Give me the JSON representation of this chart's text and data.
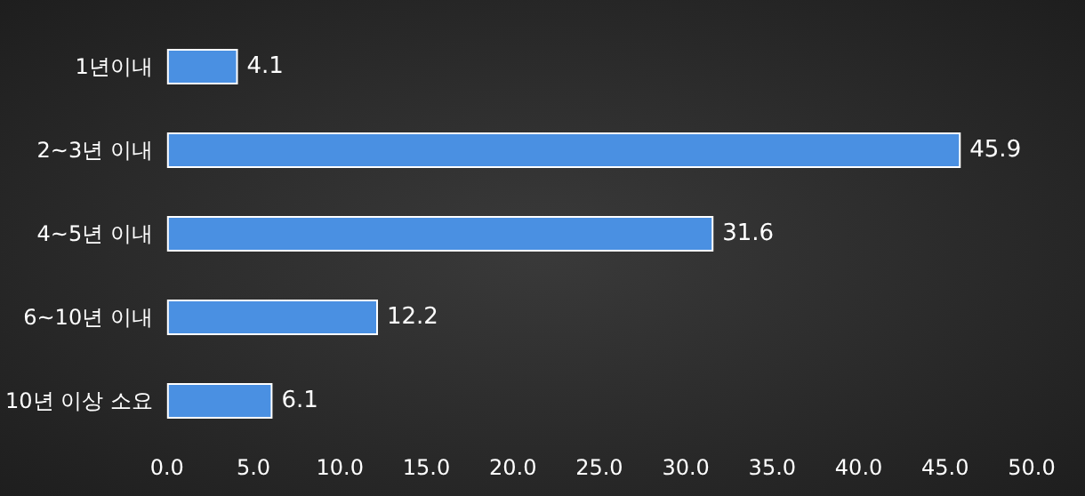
{
  "chart_data": {
    "type": "bar",
    "orientation": "horizontal",
    "categories": [
      "1년이내",
      "2~3년 이내",
      "4~5년 이내",
      "6~10년 이내",
      "10년 이상 소요"
    ],
    "values": [
      4.1,
      45.9,
      31.6,
      12.2,
      6.1
    ],
    "color": "#4a90e2",
    "xlim": [
      0,
      50
    ],
    "xticks": [
      {
        "value": 0,
        "label": "0.0"
      },
      {
        "value": 5,
        "label": "5.0"
      },
      {
        "value": 10,
        "label": "10.0"
      },
      {
        "value": 15,
        "label": "15.0"
      },
      {
        "value": 20,
        "label": "20.0"
      },
      {
        "value": 25,
        "label": "25.0"
      },
      {
        "value": 30,
        "label": "30.0"
      },
      {
        "value": 35,
        "label": "35.0"
      },
      {
        "value": 40,
        "label": "40.0"
      },
      {
        "value": 45,
        "label": "45.0"
      },
      {
        "value": 50,
        "label": "50.0"
      }
    ],
    "data_labels": true
  }
}
